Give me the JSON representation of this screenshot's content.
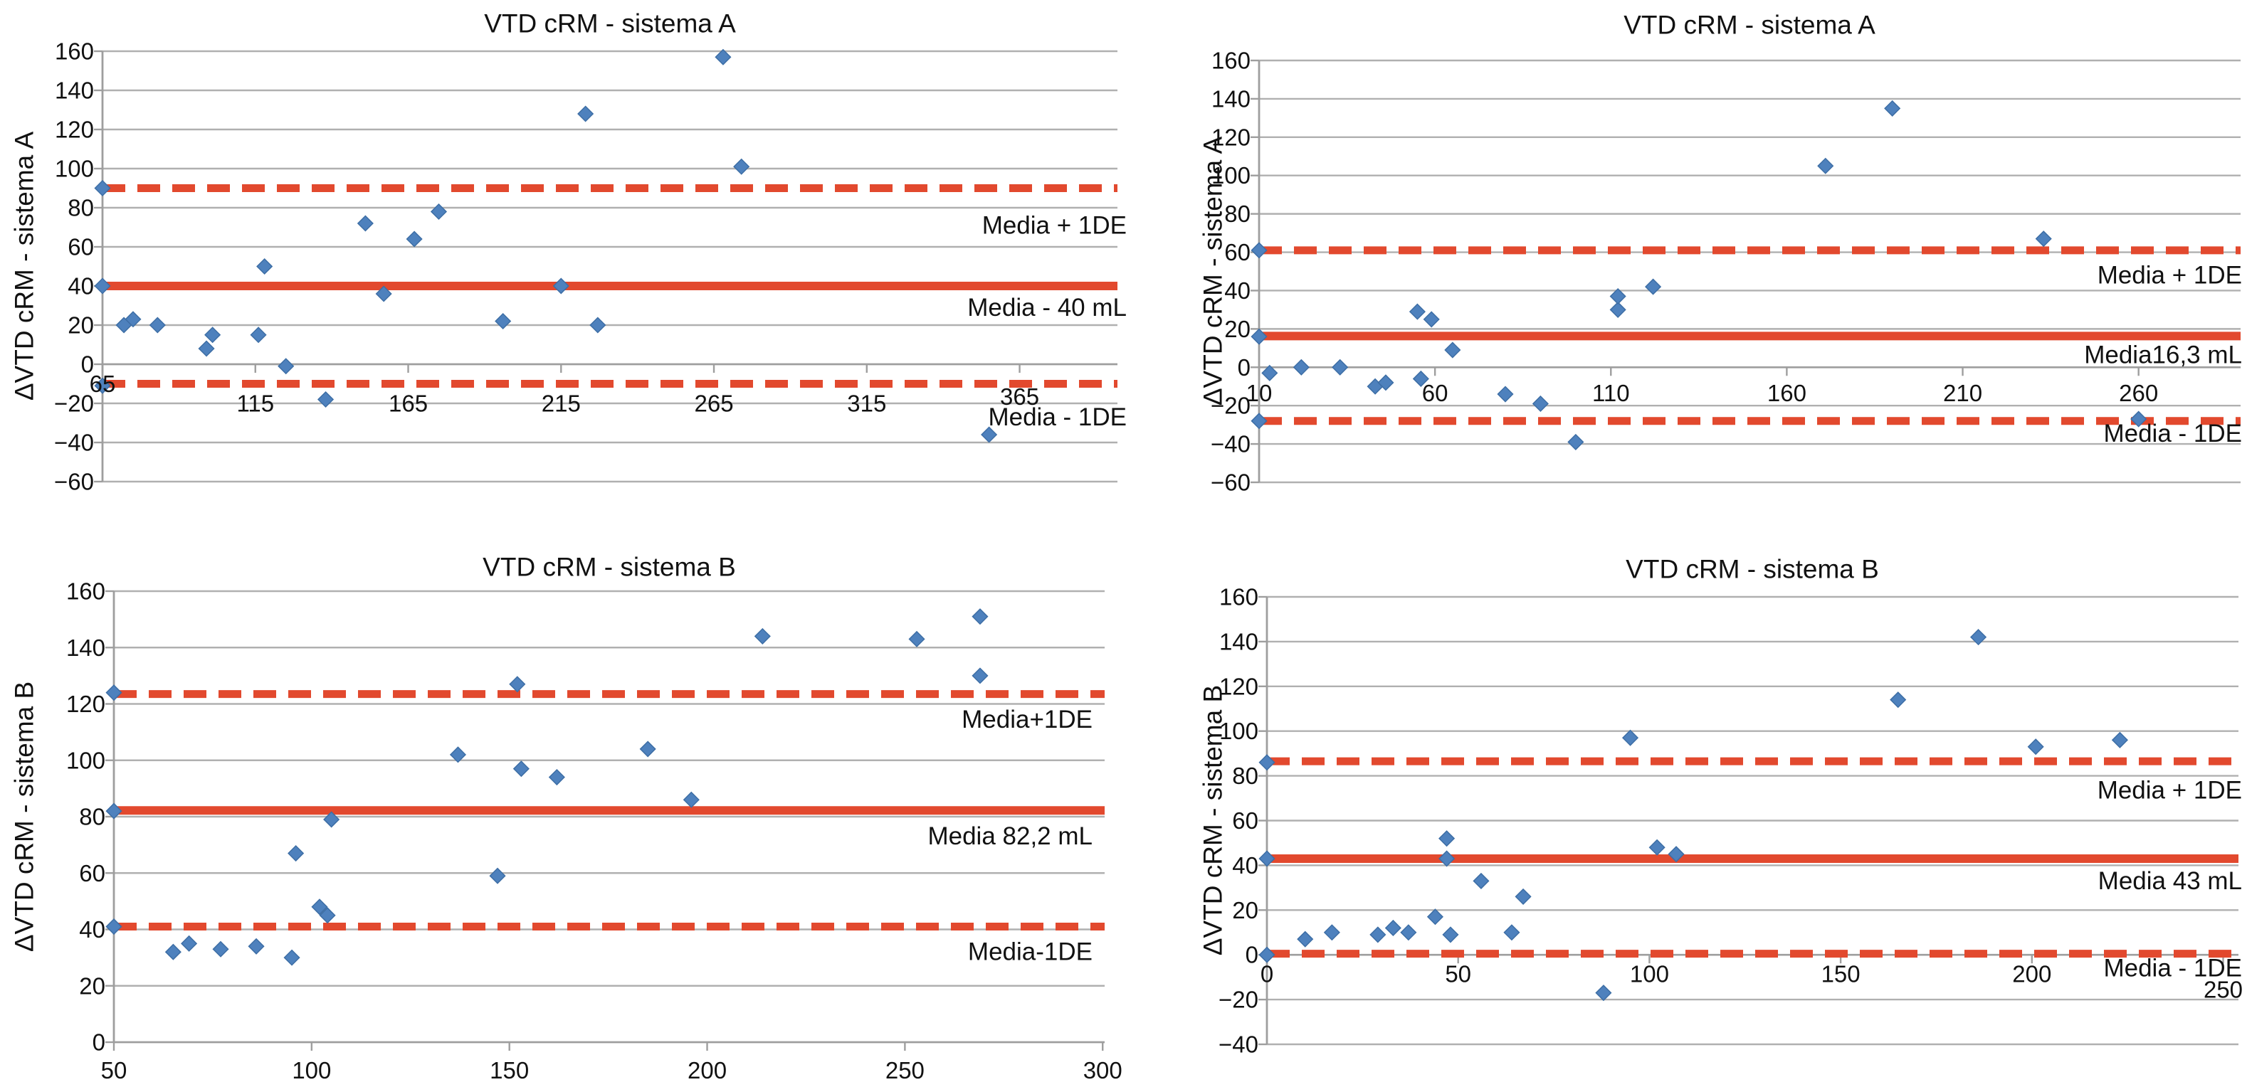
{
  "page": {
    "background": "#ffffff"
  },
  "colors": {
    "reference_red": "#e2492e",
    "point_blue": "#4e81bd",
    "point_blue_edge": "#3d6ea5",
    "gridline": "#b0b0b0",
    "axis": "#9e9e9e",
    "text": "#111111"
  },
  "chart_data": [
    {
      "type": "scatter",
      "position": "top-left",
      "title": "VTD cRM - sistema A",
      "xlabel": "",
      "ylabel": "ΔVTD cRM - sistema A",
      "x_range": [
        65,
        397
      ],
      "y_range": [
        -60,
        160
      ],
      "y_tick_step": 20,
      "grid": "horizontal",
      "legend": "none",
      "x_ticks": [
        {
          "v": 65,
          "label": "65",
          "label_y": -10,
          "size": 1
        },
        {
          "v": 115,
          "label": "115",
          "label_y": -20,
          "size": 1
        },
        {
          "v": 165,
          "label": "165",
          "label_y": -20,
          "size": 1
        },
        {
          "v": 215,
          "label": "215",
          "label_y": -20,
          "size": 1
        },
        {
          "v": 265,
          "label": "265",
          "label_y": -20,
          "size": 1
        },
        {
          "v": 315,
          "label": "315",
          "label_y": -20,
          "size": 1
        },
        {
          "v": 365,
          "label": "365",
          "label_y": -16.5,
          "size": 0.72
        }
      ],
      "reference_lines": [
        {
          "y": 90,
          "style": "dashed",
          "label": "Media + 1DE",
          "label_y": 71
        },
        {
          "y": 40,
          "style": "solid",
          "label": "Media - 40 mL",
          "label_y": 29
        },
        {
          "y": -10,
          "style": "dashed",
          "label": "Media - 1DE",
          "label_y": -27
        }
      ],
      "points": [
        [
          65,
          90
        ],
        [
          65,
          40
        ],
        [
          65,
          -11
        ],
        [
          72,
          20
        ],
        [
          75,
          23
        ],
        [
          83,
          20
        ],
        [
          99,
          8
        ],
        [
          101,
          15
        ],
        [
          116,
          15
        ],
        [
          118,
          50
        ],
        [
          125,
          -1
        ],
        [
          138,
          -18
        ],
        [
          151,
          72
        ],
        [
          157,
          36
        ],
        [
          167,
          64
        ],
        [
          175,
          78
        ],
        [
          196,
          22
        ],
        [
          215,
          40
        ],
        [
          223,
          128
        ],
        [
          227,
          20
        ],
        [
          268,
          157
        ],
        [
          274,
          101
        ],
        [
          355,
          -36
        ]
      ]
    },
    {
      "type": "scatter",
      "position": "top-right",
      "title": "VTD cRM - sistema A",
      "xlabel": "",
      "ylabel": "ΔVTD cRM - sistema A",
      "x_range": [
        10,
        289
      ],
      "y_range": [
        -60,
        160
      ],
      "y_tick_step": 20,
      "grid": "horizontal",
      "legend": "none",
      "x_ticks": [
        {
          "v": 10,
          "label": "10",
          "label_y": -13.5,
          "size": 1
        },
        {
          "v": 60,
          "label": "60",
          "label_y": -13.5,
          "size": 1
        },
        {
          "v": 110,
          "label": "110",
          "label_y": -13.5,
          "size": 1
        },
        {
          "v": 160,
          "label": "160",
          "label_y": -13.5,
          "size": 1
        },
        {
          "v": 210,
          "label": "210",
          "label_y": -13.5,
          "size": 1
        },
        {
          "v": 260,
          "label": "260",
          "label_y": -13.5,
          "size": 1
        }
      ],
      "reference_lines": [
        {
          "y": 61,
          "style": "dashed",
          "label": "Media + 1DE",
          "label_y": 48
        },
        {
          "y": 16.3,
          "style": "solid",
          "label": "Media16,3 mL",
          "label_y": 6.5
        },
        {
          "y": -28,
          "style": "dashed",
          "label": "Media - 1DE",
          "label_y": -34.5
        }
      ],
      "points": [
        [
          10,
          61
        ],
        [
          10,
          16
        ],
        [
          10,
          -28
        ],
        [
          13,
          -3
        ],
        [
          22,
          0
        ],
        [
          33,
          0
        ],
        [
          43,
          -10
        ],
        [
          46,
          -8
        ],
        [
          55,
          29
        ],
        [
          56,
          -6
        ],
        [
          59,
          25
        ],
        [
          65,
          9
        ],
        [
          80,
          -14
        ],
        [
          90,
          -19
        ],
        [
          100,
          -39
        ],
        [
          112,
          30
        ],
        [
          112,
          37
        ],
        [
          122,
          42
        ],
        [
          171,
          105
        ],
        [
          190,
          135
        ],
        [
          233,
          67
        ],
        [
          260,
          -27
        ]
      ]
    },
    {
      "type": "scatter",
      "position": "bottom-left",
      "title": "VTD cRM - sistema B",
      "xlabel": "",
      "ylabel": "ΔVTD cRM - sistema B",
      "x_range": [
        50,
        300.5
      ],
      "y_range": [
        0,
        160
      ],
      "y_tick_step": 20,
      "grid": "horizontal",
      "legend": "none",
      "x_ticks": [
        {
          "v": 50,
          "label": "50",
          "label_y": -10,
          "size": 1
        },
        {
          "v": 100,
          "label": "100",
          "label_y": -10,
          "size": 1
        },
        {
          "v": 150,
          "label": "150",
          "label_y": -10,
          "size": 1
        },
        {
          "v": 200,
          "label": "200",
          "label_y": -10,
          "size": 1
        },
        {
          "v": 250,
          "label": "250",
          "label_y": -10,
          "size": 1
        },
        {
          "v": 300,
          "label": "300",
          "label_y": -10,
          "size": 1
        }
      ],
      "reference_lines": [
        {
          "y": 123.5,
          "style": "dashed",
          "label": "Media+1DE",
          "label_y": 114.5
        },
        {
          "y": 82.2,
          "style": "solid",
          "label": "Media 82,2 mL",
          "label_y": 73
        },
        {
          "y": 41,
          "style": "dashed",
          "label": "Media-1DE",
          "label_y": 32
        }
      ],
      "points": [
        [
          50,
          124
        ],
        [
          50,
          82
        ],
        [
          50,
          41
        ],
        [
          65,
          32
        ],
        [
          69,
          35
        ],
        [
          77,
          33
        ],
        [
          86,
          34
        ],
        [
          95,
          30
        ],
        [
          96,
          67
        ],
        [
          102,
          48
        ],
        [
          104,
          45
        ],
        [
          105,
          79
        ],
        [
          137,
          102
        ],
        [
          147,
          59
        ],
        [
          152,
          127
        ],
        [
          153,
          97
        ],
        [
          162,
          94
        ],
        [
          185,
          104
        ],
        [
          196,
          86
        ],
        [
          214,
          144
        ],
        [
          253,
          143
        ],
        [
          269,
          151
        ],
        [
          269,
          130
        ]
      ]
    },
    {
      "type": "scatter",
      "position": "bottom-right",
      "title": "VTD cRM - sistema B",
      "xlabel": "",
      "ylabel": "ΔVTD cRM - sistema B",
      "x_range": [
        0,
        254
      ],
      "y_range": [
        -40,
        160
      ],
      "y_tick_step": 20,
      "grid": "horizontal",
      "legend": "none",
      "x_ticks": [
        {
          "v": 0,
          "label": "0",
          "label_y": -8.5,
          "size": 1
        },
        {
          "v": 50,
          "label": "50",
          "label_y": -8.5,
          "size": 1
        },
        {
          "v": 100,
          "label": "100",
          "label_y": -8.5,
          "size": 1
        },
        {
          "v": 150,
          "label": "150",
          "label_y": -8.5,
          "size": 1
        },
        {
          "v": 200,
          "label": "200",
          "label_y": -8.5,
          "size": 1
        },
        {
          "v": 250,
          "label": "250",
          "label_y": -15.5,
          "size": 0.72
        }
      ],
      "reference_lines": [
        {
          "y": 86.5,
          "style": "dashed",
          "label": "Media + 1DE",
          "label_y": 73.5
        },
        {
          "y": 43,
          "style": "solid",
          "label": "Media 43 mL",
          "label_y": 33
        },
        {
          "y": 0.5,
          "style": "dashed",
          "label": "Media - 1DE",
          "label_y": -6
        }
      ],
      "points": [
        [
          0,
          86
        ],
        [
          0,
          43
        ],
        [
          0,
          0
        ],
        [
          10,
          7
        ],
        [
          17,
          10
        ],
        [
          29,
          9
        ],
        [
          33,
          12
        ],
        [
          37,
          10
        ],
        [
          44,
          17
        ],
        [
          47,
          52
        ],
        [
          47,
          43
        ],
        [
          48,
          9
        ],
        [
          56,
          33
        ],
        [
          64,
          10
        ],
        [
          67,
          26
        ],
        [
          88,
          -17
        ],
        [
          95,
          97
        ],
        [
          102,
          48
        ],
        [
          107,
          45
        ],
        [
          165,
          114
        ],
        [
          186,
          142
        ],
        [
          201,
          93
        ],
        [
          223,
          96
        ]
      ]
    }
  ]
}
